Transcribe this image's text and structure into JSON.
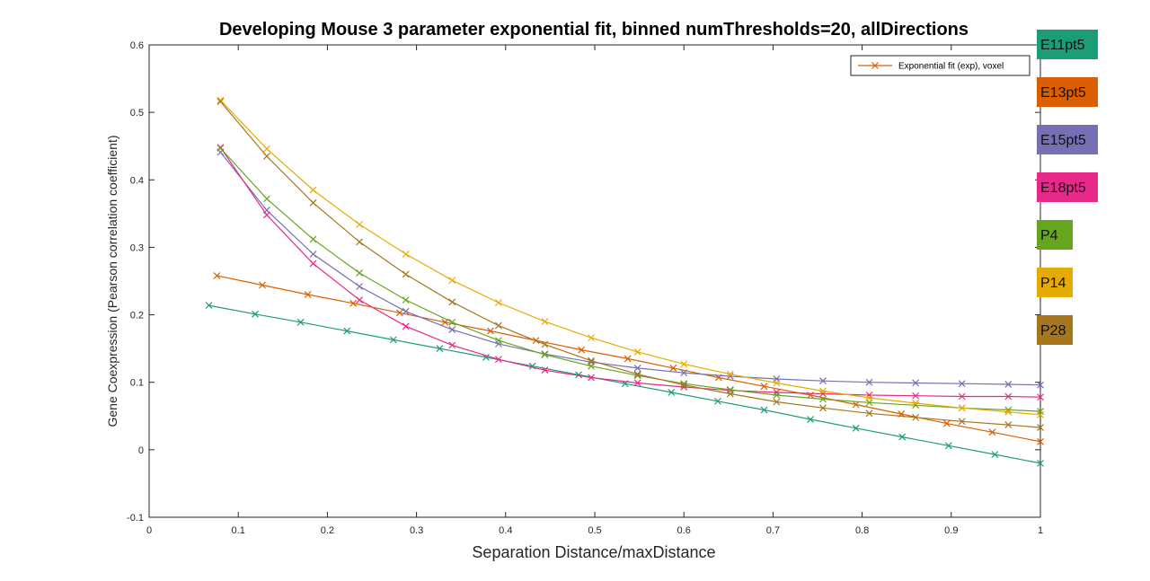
{
  "chart_data": {
    "type": "line",
    "title": "Developing Mouse 3 parameter exponential fit, binned numThresholds=20, allDirections",
    "xlabel": "Separation Distance/maxDistance",
    "ylabel": "Gene Coexpression (Pearson correlation coefficient)",
    "xlim": [
      0,
      1
    ],
    "ylim": [
      -0.1,
      0.6
    ],
    "xticks": [
      "0",
      "0.1",
      "0.2",
      "0.3",
      "0.4",
      "0.5",
      "0.6",
      "0.7",
      "0.8",
      "0.9",
      "1"
    ],
    "yticks": [
      "-0.1",
      "0",
      "0.1",
      "0.2",
      "0.3",
      "0.4",
      "0.5",
      "0.6"
    ],
    "grid": false,
    "legend": {
      "placement": "top-right",
      "entries": [
        "Exponential fit (exp), voxel"
      ]
    },
    "marker": "x",
    "series": [
      {
        "name": "E11pt5",
        "color": "#1b9e77",
        "x": [
          0.067,
          0.119,
          0.17,
          0.222,
          0.274,
          0.326,
          0.378,
          0.43,
          0.482,
          0.534,
          0.586,
          0.638,
          0.69,
          0.742,
          0.793,
          0.845,
          0.897,
          0.949,
          1.0
        ],
        "y": [
          0.214,
          0.201,
          0.189,
          0.176,
          0.163,
          0.15,
          0.137,
          0.124,
          0.111,
          0.098,
          0.085,
          0.072,
          0.059,
          0.045,
          0.032,
          0.019,
          0.006,
          -0.007,
          -0.02
        ]
      },
      {
        "name": "E13pt5",
        "color": "#d95f02",
        "x": [
          0.076,
          0.127,
          0.178,
          0.229,
          0.281,
          0.332,
          0.383,
          0.434,
          0.485,
          0.537,
          0.588,
          0.639,
          0.69,
          0.742,
          0.793,
          0.844,
          0.895,
          0.946,
          1.0
        ],
        "y": [
          0.258,
          0.244,
          0.23,
          0.217,
          0.203,
          0.189,
          0.176,
          0.162,
          0.148,
          0.135,
          0.121,
          0.107,
          0.094,
          0.081,
          0.067,
          0.053,
          0.039,
          0.026,
          0.012
        ]
      },
      {
        "name": "E15pt5",
        "color": "#7570b3",
        "x": [
          0.08,
          0.132,
          0.184,
          0.236,
          0.288,
          0.34,
          0.392,
          0.444,
          0.496,
          0.548,
          0.6,
          0.652,
          0.704,
          0.756,
          0.808,
          0.86,
          0.912,
          0.964,
          1.0
        ],
        "y": [
          0.441,
          0.355,
          0.29,
          0.242,
          0.205,
          0.178,
          0.157,
          0.142,
          0.13,
          0.121,
          0.114,
          0.109,
          0.105,
          0.102,
          0.1,
          0.099,
          0.098,
          0.097,
          0.096
        ]
      },
      {
        "name": "E18pt5",
        "color": "#e7298a",
        "x": [
          0.08,
          0.132,
          0.184,
          0.236,
          0.288,
          0.34,
          0.392,
          0.444,
          0.496,
          0.548,
          0.6,
          0.652,
          0.704,
          0.756,
          0.808,
          0.86,
          0.912,
          0.964,
          1.0
        ],
        "y": [
          0.448,
          0.348,
          0.276,
          0.222,
          0.183,
          0.155,
          0.134,
          0.118,
          0.107,
          0.099,
          0.093,
          0.088,
          0.085,
          0.083,
          0.081,
          0.08,
          0.079,
          0.079,
          0.078
        ]
      },
      {
        "name": "P4",
        "color": "#66a61e",
        "x": [
          0.08,
          0.132,
          0.184,
          0.236,
          0.288,
          0.34,
          0.392,
          0.444,
          0.496,
          0.548,
          0.6,
          0.652,
          0.704,
          0.756,
          0.808,
          0.86,
          0.912,
          0.964,
          1.0
        ],
        "y": [
          0.447,
          0.372,
          0.312,
          0.262,
          0.222,
          0.189,
          0.162,
          0.141,
          0.124,
          0.11,
          0.098,
          0.089,
          0.081,
          0.075,
          0.07,
          0.066,
          0.062,
          0.059,
          0.057
        ]
      },
      {
        "name": "P14",
        "color": "#e6ab02",
        "x": [
          0.08,
          0.132,
          0.184,
          0.236,
          0.288,
          0.34,
          0.392,
          0.444,
          0.496,
          0.548,
          0.6,
          0.652,
          0.704,
          0.756,
          0.808,
          0.86,
          0.912,
          0.964,
          1.0
        ],
        "y": [
          0.518,
          0.446,
          0.385,
          0.334,
          0.29,
          0.251,
          0.218,
          0.19,
          0.166,
          0.145,
          0.127,
          0.112,
          0.099,
          0.087,
          0.077,
          0.069,
          0.062,
          0.056,
          0.052
        ]
      },
      {
        "name": "P28",
        "color": "#a6761d",
        "x": [
          0.08,
          0.132,
          0.184,
          0.236,
          0.288,
          0.34,
          0.392,
          0.444,
          0.496,
          0.548,
          0.6,
          0.652,
          0.704,
          0.756,
          0.808,
          0.86,
          0.912,
          0.964,
          1.0
        ],
        "y": [
          0.516,
          0.435,
          0.366,
          0.308,
          0.26,
          0.219,
          0.184,
          0.156,
          0.132,
          0.112,
          0.096,
          0.083,
          0.071,
          0.062,
          0.054,
          0.048,
          0.042,
          0.037,
          0.033
        ]
      }
    ]
  },
  "side_labels": [
    {
      "text": "E11pt5",
      "color": "#1b9e77"
    },
    {
      "text": "E13pt5",
      "color": "#d95f02"
    },
    {
      "text": "E15pt5",
      "color": "#7570b3"
    },
    {
      "text": "E18pt5",
      "color": "#e7298a"
    },
    {
      "text": "P4",
      "color": "#66a61e"
    },
    {
      "text": "P14",
      "color": "#e6ab02"
    },
    {
      "text": "P28",
      "color": "#a6761d"
    }
  ]
}
